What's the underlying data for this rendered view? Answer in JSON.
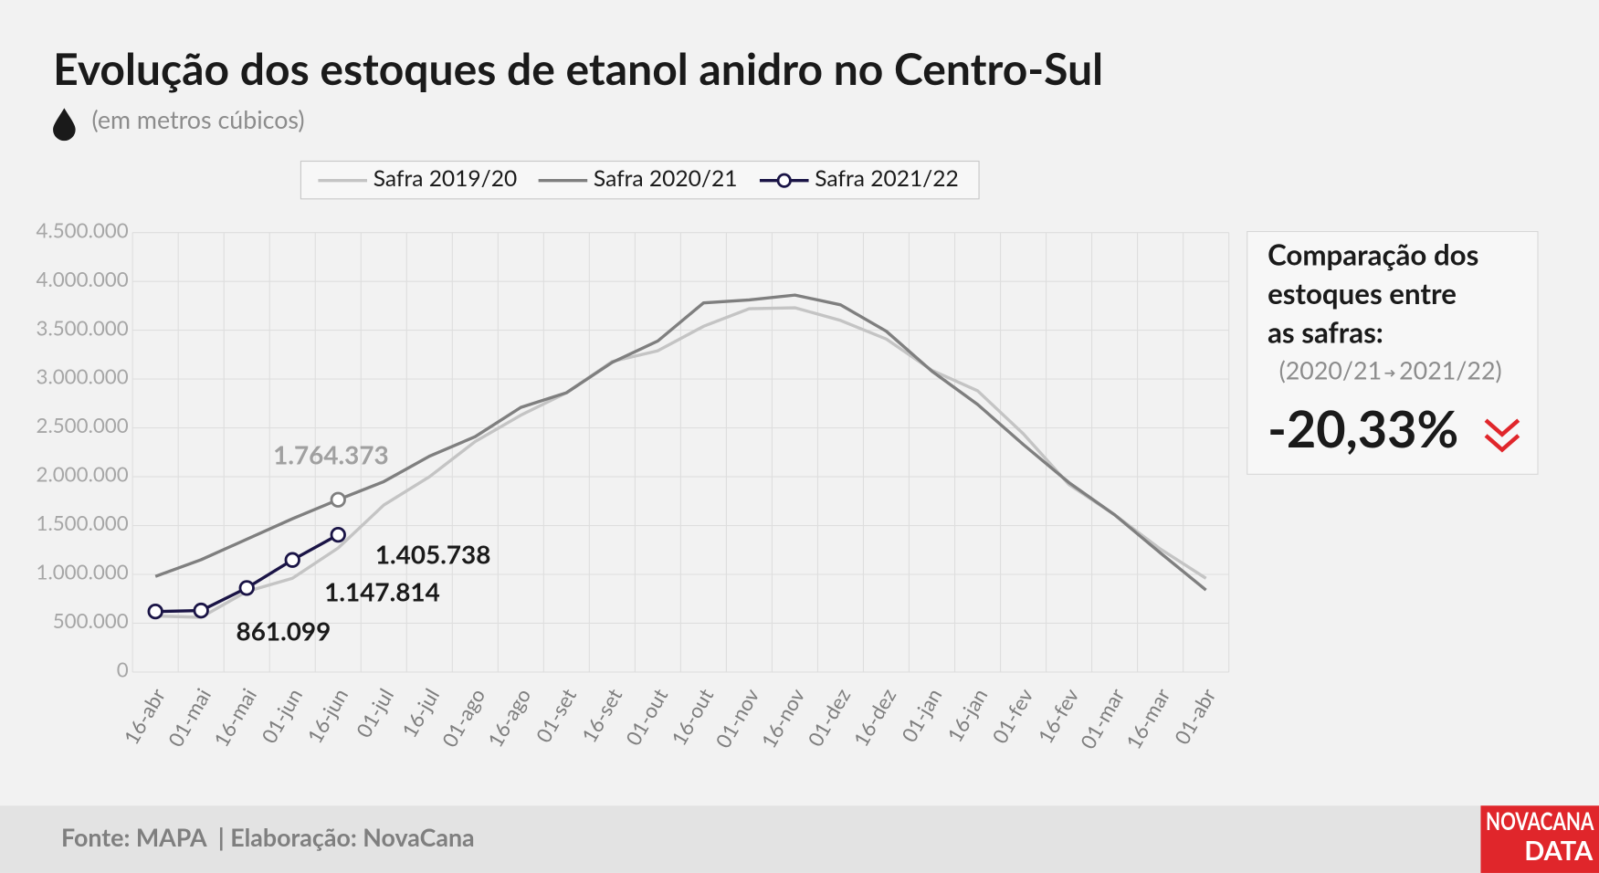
{
  "chart_data": {
    "type": "line",
    "title": "Evolução dos estoques de etanol anidro no Centro-Sul",
    "subtitle": "(em metros cúbicos)",
    "categories": [
      "16-abr",
      "01-mai",
      "16-mai",
      "01-jun",
      "16-jun",
      "01-jul",
      "16-jul",
      "01-ago",
      "16-ago",
      "01-set",
      "16-set",
      "01-out",
      "16-out",
      "01-nov",
      "16-nov",
      "01-dez",
      "16-dez",
      "01-jan",
      "16-jan",
      "01-fev",
      "16-fev",
      "01-mar",
      "16-mar",
      "01-abr"
    ],
    "series": [
      {
        "name": "Safra 2019/20",
        "color": "#c4c4c4",
        "values": [
          574000,
          560000,
          825000,
          960000,
          1270000,
          1710000,
          2000000,
          2360000,
          2630000,
          2860000,
          3180000,
          3290000,
          3540000,
          3720000,
          3730000,
          3600000,
          3410000,
          3090000,
          2880000,
          2440000,
          1920000,
          1610000,
          1260000,
          960000
        ],
        "value_labels": [
          null,
          null,
          null,
          null,
          null,
          null,
          null,
          null,
          null,
          null,
          null,
          null,
          null,
          null,
          null,
          null,
          null,
          null,
          null,
          null,
          null,
          null,
          null,
          null
        ]
      },
      {
        "name": "Safra 2020/21",
        "color": "#7f7f7f",
        "values": [
          980000,
          1150000,
          1360000,
          1570000,
          1764373,
          1950000,
          2210000,
          2410000,
          2710000,
          2860000,
          3170000,
          3390000,
          3780000,
          3810000,
          3860000,
          3760000,
          3490000,
          3080000,
          2740000,
          2330000,
          1940000,
          1610000,
          1220000,
          840000
        ],
        "value_labels": [
          null,
          null,
          null,
          null,
          "1.764.373",
          null,
          null,
          null,
          null,
          null,
          null,
          null,
          null,
          null,
          null,
          null,
          null,
          null,
          null,
          null,
          null,
          null,
          null,
          null
        ]
      },
      {
        "name": "Safra 2021/22",
        "color": "#1a1446",
        "marker": true,
        "values": [
          620000,
          630000,
          861099,
          1147814,
          1405738,
          null,
          null,
          null,
          null,
          null,
          null,
          null,
          null,
          null,
          null,
          null,
          null,
          null,
          null,
          null,
          null,
          null,
          null,
          null
        ],
        "value_labels": [
          null,
          null,
          "861.099",
          "1.147.814",
          "1.405.738",
          null,
          null,
          null,
          null,
          null,
          null,
          null,
          null,
          null,
          null,
          null,
          null,
          null,
          null,
          null,
          null,
          null,
          null,
          null
        ]
      }
    ],
    "ylim": [
      0,
      4500000
    ],
    "yticks": [
      0,
      {
        "value": 500000,
        "label": "500.000"
      },
      {
        "value": 1000000,
        "label": "1.000.000"
      },
      {
        "value": 1500000,
        "label": "1.500.000"
      },
      {
        "value": 2000000,
        "label": "2.000.000"
      },
      {
        "value": 2500000,
        "label": "2.500.000"
      },
      {
        "value": 3000000,
        "label": "3.000.000"
      },
      {
        "value": 3500000,
        "label": "3.500.000"
      },
      {
        "value": 4000000,
        "label": "4.000.000"
      },
      {
        "value": 4500000,
        "label": "4.500.000"
      }
    ],
    "grid": true,
    "legend": "top"
  },
  "panel": {
    "title_lines": [
      "Comparação dos",
      "estoques entre",
      "as safras:"
    ],
    "from": "(2020/21",
    "to": "2021/22)",
    "value": "-20,33%"
  },
  "footer": {
    "source": "Fonte: MAPA  | Elaboração: NovaCana",
    "logo_top": "NOVACANA",
    "logo_bottom": "DATA"
  }
}
